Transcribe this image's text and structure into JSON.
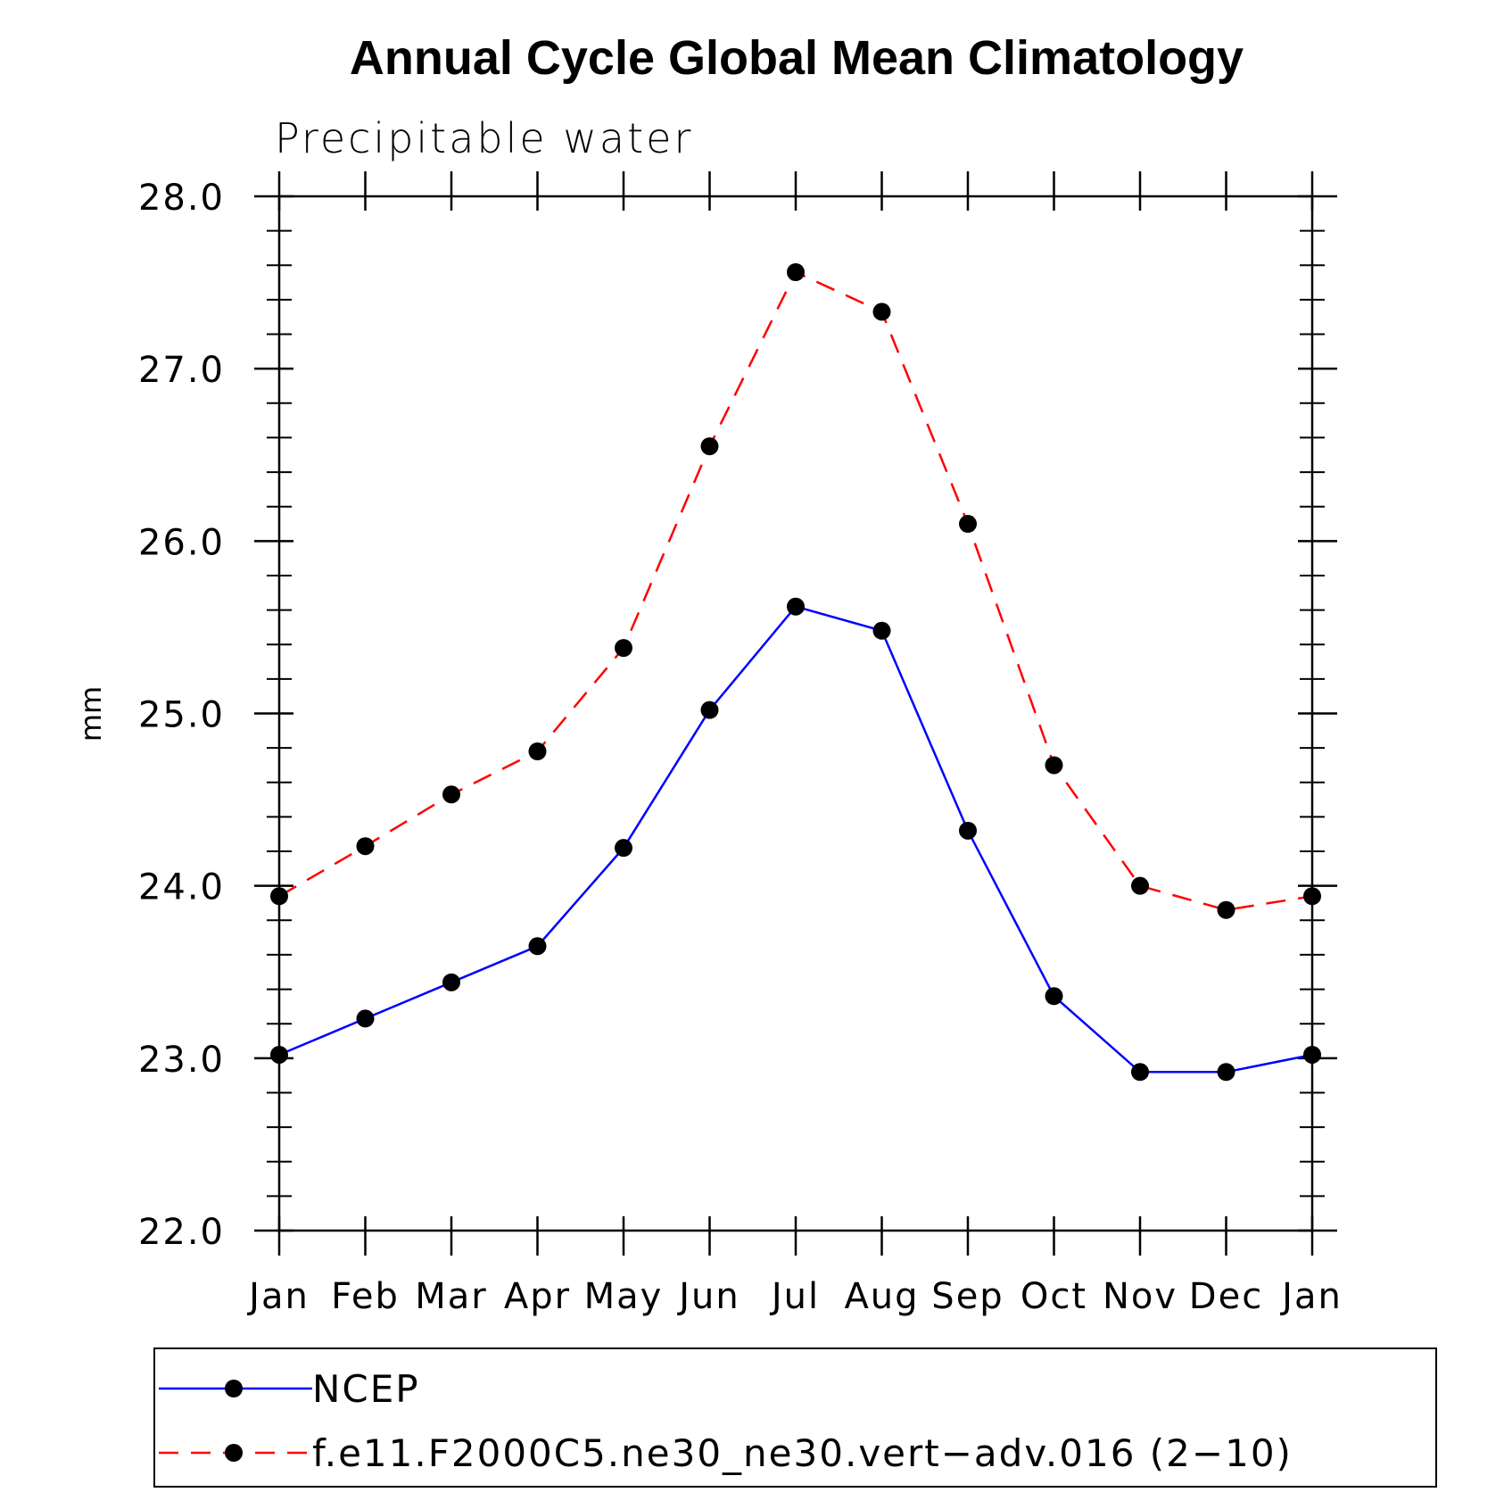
{
  "chart_data": {
    "type": "line",
    "title": "Annual Cycle Global Mean Climatology",
    "subtitle": "Precipitable water",
    "xlabel": "",
    "ylabel": "mm",
    "categories": [
      "Jan",
      "Feb",
      "Mar",
      "Apr",
      "May",
      "Jun",
      "Jul",
      "Aug",
      "Sep",
      "Oct",
      "Nov",
      "Dec",
      "Jan"
    ],
    "ylim": [
      22.0,
      28.0
    ],
    "yticks": [
      "22.0",
      "23.0",
      "24.0",
      "25.0",
      "26.0",
      "27.0",
      "28.0"
    ],
    "grid": false,
    "legend_position": "bottom",
    "series": [
      {
        "name": "NCEP",
        "color": "#0000ff",
        "dashed": false,
        "values": [
          23.02,
          23.23,
          23.44,
          23.65,
          24.22,
          25.02,
          25.62,
          25.48,
          24.32,
          23.36,
          22.92,
          22.92,
          23.02
        ]
      },
      {
        "name": "f.e11.F2000C5.ne30_ne30.vert−adv.016 (2−10)",
        "color": "#ff0000",
        "dashed": true,
        "values": [
          23.94,
          24.23,
          24.53,
          24.78,
          25.38,
          26.55,
          27.56,
          27.33,
          26.1,
          24.7,
          24.0,
          23.86,
          23.94
        ]
      }
    ]
  }
}
